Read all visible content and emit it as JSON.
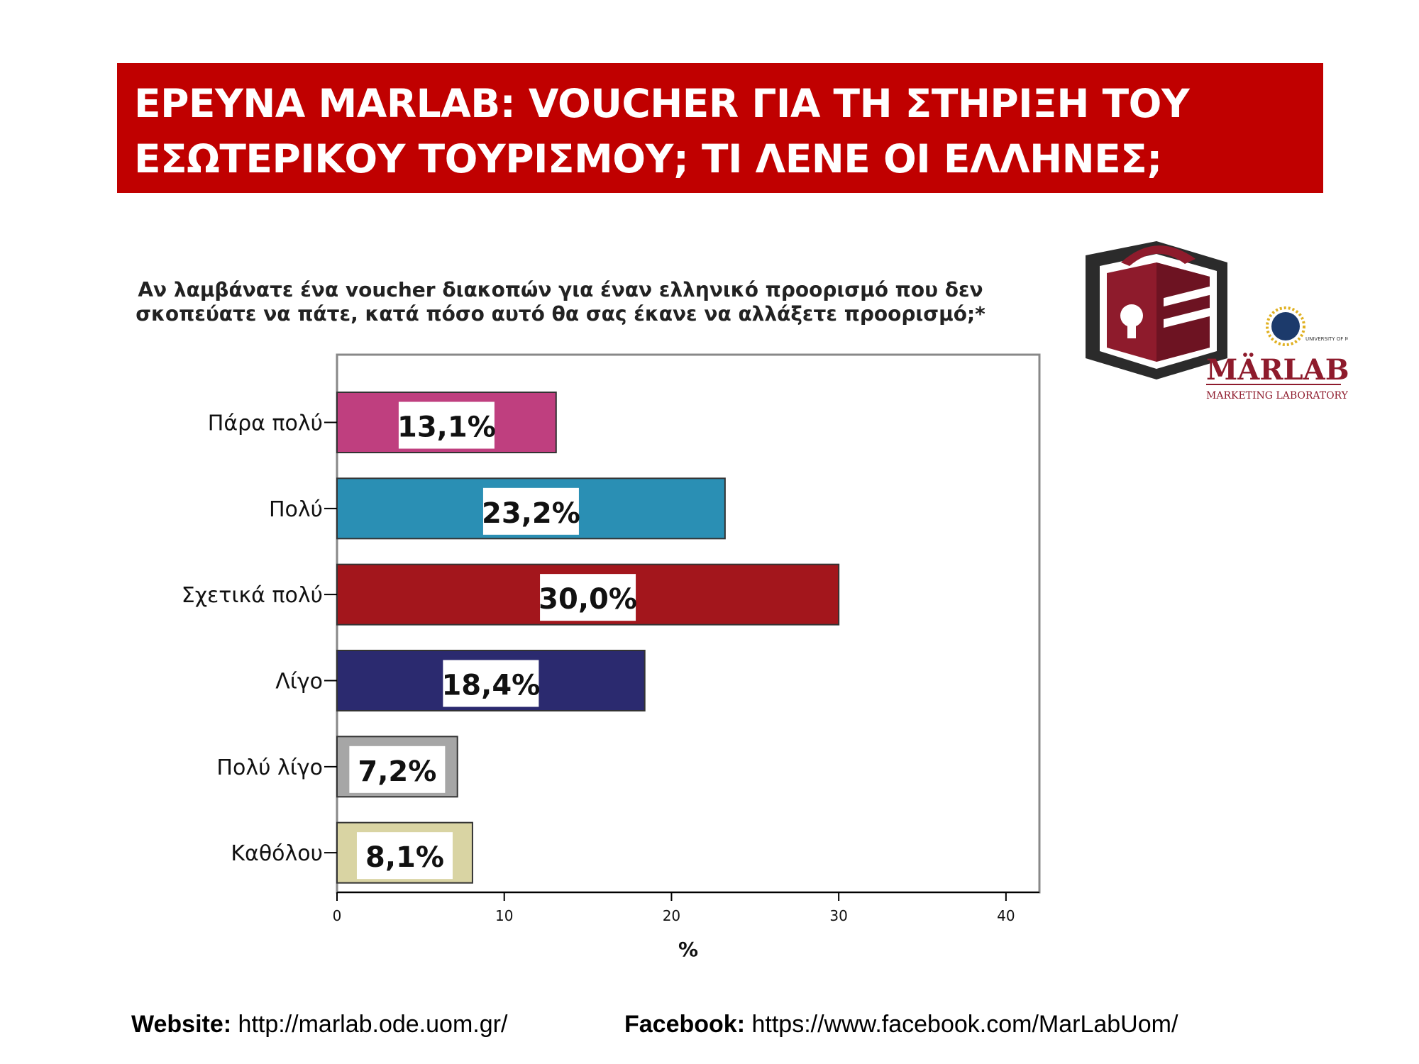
{
  "banner": {
    "line1": "ΕΡΕΥΝΑ MARLAB: VOUCHER ΓΙΑ ΤΗ ΣΤΗΡΙΞΗ ΤΟΥ",
    "line2": "ΕΣΩΤΕΡΙΚΟΥ ΤΟΥΡΙΣΜΟΥ; ΤΙ ΛΕΝΕ ΟΙ ΕΛΛΗΝΕΣ;"
  },
  "logo": {
    "brand": "MÄRLAB",
    "subtitle": "MARKETING LABORATORY",
    "university": "UNIVERSITY OF MACEDONIA"
  },
  "chart_data": {
    "type": "bar",
    "orientation": "horizontal",
    "title_lines": [
      "Αν λαμβάνατε ένα voucher διακοπών για έναν ελληνικό προορισμό που δεν",
      "σκοπεύατε να πάτε, κατά πόσο αυτό θα σας έκανε να αλλάξετε προορισμό;*"
    ],
    "categories": [
      "Πάρα πολύ",
      "Πολύ",
      "Σχετικά πολύ",
      "Λίγο",
      "Πολύ λίγο",
      "Καθόλου"
    ],
    "values": [
      13.1,
      23.2,
      30.0,
      18.4,
      7.2,
      8.1
    ],
    "data_labels": [
      "13,1%",
      "23,2%",
      "30,0%",
      "18,4%",
      "7,2%",
      "8,1%"
    ],
    "colors": [
      "#bf3f7f",
      "#2a8fb4",
      "#a3161c",
      "#2b2a6f",
      "#a6a6a6",
      "#d9d4a3"
    ],
    "xlabel": "%",
    "xlim": [
      0,
      42
    ],
    "xticks": [
      0,
      10,
      20,
      30,
      40
    ],
    "grid": false
  },
  "footer": {
    "website_label": "Website:",
    "website_url": "http://marlab.ode.uom.gr/",
    "facebook_label": "Facebook:",
    "facebook_url": "https://www.facebook.com/MarLabUom/"
  }
}
